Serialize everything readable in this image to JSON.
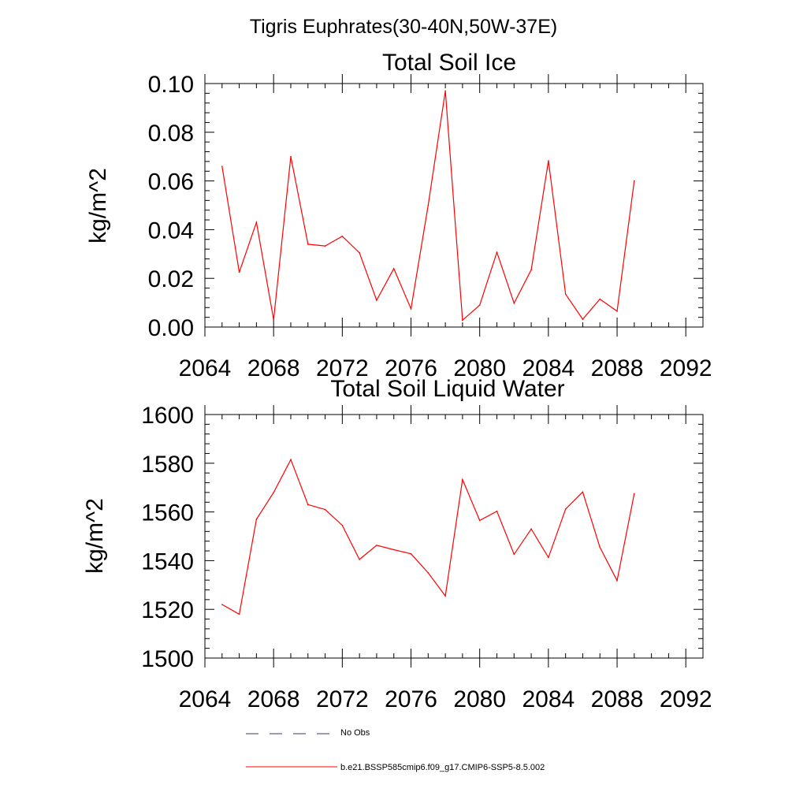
{
  "figure": {
    "suptitle": "Tigris Euphrates(30-40N,50W-37E)"
  },
  "legend": {
    "entries": [
      {
        "label": "No Obs",
        "color": "#3a3a6a",
        "style": "dashed"
      },
      {
        "label": "b.e21.BSSP585cmip6.f09_g17.CMIP6-SSP5-8.5.002",
        "color": "#ff0000",
        "style": "solid"
      }
    ]
  },
  "chart_data": [
    {
      "type": "line",
      "title": "Total Soil Ice",
      "xlabel": "",
      "ylabel": "kg/m^2",
      "xlim": [
        2064,
        2093
      ],
      "ylim": [
        0.0,
        0.1
      ],
      "xticks": [
        2064,
        2068,
        2072,
        2076,
        2080,
        2084,
        2088,
        2092
      ],
      "xtick_labels": [
        "2064",
        "2068",
        "2072",
        "2076",
        "2080",
        "2084",
        "2088",
        "2092"
      ],
      "yticks": [
        0.0,
        0.02,
        0.04,
        0.06,
        0.08,
        0.1
      ],
      "ytick_labels": [
        "0.00",
        "0.02",
        "0.04",
        "0.06",
        "0.08",
        "0.10"
      ],
      "grid": false,
      "series": [
        {
          "color": "#ff0000",
          "x": [
            2065,
            2066,
            2067,
            2068,
            2069,
            2070,
            2071,
            2072,
            2073,
            2074,
            2075,
            2076,
            2077,
            2078,
            2079,
            2080,
            2081,
            2082,
            2083,
            2084,
            2085,
            2086,
            2087,
            2088,
            2089
          ],
          "values": [
            0.066,
            0.0225,
            0.043,
            0.003,
            0.07,
            0.034,
            0.0333,
            0.0373,
            0.0305,
            0.011,
            0.024,
            0.0075,
            0.05,
            0.097,
            0.0028,
            0.009,
            0.0307,
            0.0098,
            0.0235,
            0.0683,
            0.0135,
            0.0032,
            0.0115,
            0.0065,
            0.06
          ]
        }
      ]
    },
    {
      "type": "line",
      "title": "Total Soil Liquid Water",
      "xlabel": "",
      "ylabel": "kg/m^2",
      "xlim": [
        2064,
        2093
      ],
      "ylim": [
        1500,
        1600
      ],
      "xticks": [
        2064,
        2068,
        2072,
        2076,
        2080,
        2084,
        2088,
        2092
      ],
      "xtick_labels": [
        "2064",
        "2068",
        "2072",
        "2076",
        "2080",
        "2084",
        "2088",
        "2092"
      ],
      "yticks": [
        1500,
        1520,
        1540,
        1560,
        1580,
        1600
      ],
      "ytick_labels": [
        "1500",
        "1520",
        "1540",
        "1560",
        "1580",
        "1600"
      ],
      "grid": false,
      "series": [
        {
          "color": "#ff0000",
          "x": [
            2065,
            2066,
            2067,
            2068,
            2069,
            2070,
            2071,
            2072,
            2073,
            2074,
            2075,
            2076,
            2077,
            2078,
            2079,
            2080,
            2081,
            2082,
            2083,
            2084,
            2085,
            2086,
            2087,
            2088,
            2089
          ],
          "values": [
            1522,
            1518,
            1557,
            1568,
            1581.5,
            1563,
            1561,
            1554.5,
            1540.5,
            1546.3,
            1544.5,
            1542.8,
            1535,
            1525.5,
            1573.3,
            1556.5,
            1560.3,
            1542.6,
            1553,
            1541.3,
            1561.2,
            1568.2,
            1545.5,
            1531.8,
            1567.5
          ]
        }
      ]
    }
  ]
}
